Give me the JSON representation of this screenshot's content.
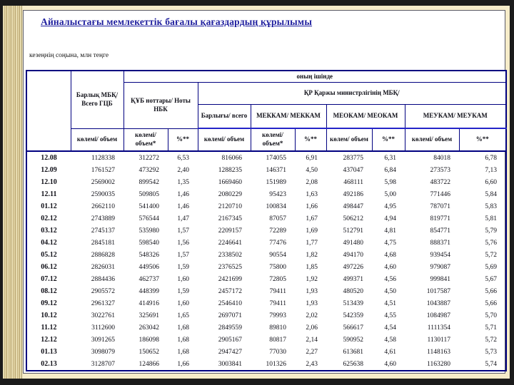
{
  "slide": {
    "title": "Айналыстағы мемлекеттік бағалы қағаздардың құрылымы",
    "subtitle": "кезеңнің соңына, млн теңге"
  },
  "colors": {
    "slide_background": "#f6ecc9",
    "table_border": "#000080",
    "header_divider_blue": "#2424c8",
    "title_text": "#1d1d9e",
    "frame_background": "#1b1b1b"
  },
  "table": {
    "header": {
      "total_gs": "Барлық МБҚ/ Всего ГЦБ",
      "of_which": "оның ішінде",
      "nbk_notes": "ҚҰБ ноттары/ Ноты НБК",
      "minfin": "ҚР Қаржы министрлігінің МБҚ/",
      "total": "Барлығы/ всего",
      "mekkam": "МЕККАМ/ МЕККАМ",
      "meokam": "МЕОКАМ/ МЕОКАМ",
      "meukam": "МЕУКАМ/ МЕУКАМ",
      "volume": "көлемі/ объем",
      "volume_star": "көлемі/ объем*",
      "volume_short": "көлем/ объем",
      "pct": "%**"
    },
    "rows": [
      [
        "12.08",
        "1128338",
        "312272",
        "6,53",
        "816066",
        "174055",
        "6,91",
        "283775",
        "6,31",
        "84018",
        "6,78"
      ],
      [
        "12.09",
        "1761527",
        "473292",
        "2,40",
        "1288235",
        "146371",
        "4,50",
        "437047",
        "6,84",
        "273573",
        "7,13"
      ],
      [
        "12.10",
        "2569002",
        "899542",
        "1,35",
        "1669460",
        "151989",
        "2,08",
        "468111",
        "5,98",
        "483722",
        "6,60"
      ],
      [
        "12.11",
        "2590035",
        "509805",
        "1,46",
        "2080229",
        "95423",
        "1,63",
        "492186",
        "5,00",
        "771446",
        "5,84"
      ],
      [
        "01.12",
        "2662110",
        "541400",
        "1,46",
        "2120710",
        "100834",
        "1,66",
        "498447",
        "4,95",
        "787071",
        "5,83"
      ],
      [
        "02.12",
        "2743889",
        "576544",
        "1,47",
        "2167345",
        "87057",
        "1,67",
        "506212",
        "4,94",
        "819771",
        "5,81"
      ],
      [
        "03.12",
        "2745137",
        "535980",
        "1,57",
        "2209157",
        "72289",
        "1,69",
        "512791",
        "4,81",
        "854771",
        "5,79"
      ],
      [
        "04.12",
        "2845181",
        "598540",
        "1,56",
        "2246641",
        "77476",
        "1,77",
        "491480",
        "4,75",
        "888371",
        "5,76"
      ],
      [
        "05.12",
        "2886828",
        "548326",
        "1,57",
        "2338502",
        "90554",
        "1,82",
        "494170",
        "4,68",
        "939454",
        "5,72"
      ],
      [
        "06.12",
        "2826031",
        "449506",
        "1,59",
        "2376525",
        "75800",
        "1,85",
        "497226",
        "4,60",
        "979087",
        "5,69"
      ],
      [
        "07.12",
        "2884436",
        "462737",
        "1,60",
        "2421699",
        "72805",
        "1,92",
        "499371",
        "4,56",
        "999841",
        "5,67"
      ],
      [
        "08.12",
        "2905572",
        "448399",
        "1,59",
        "2457172",
        "79411",
        "1,93",
        "480520",
        "4,50",
        "1017587",
        "5,66"
      ],
      [
        "09.12",
        "2961327",
        "414916",
        "1,60",
        "2546410",
        "79411",
        "1,93",
        "513439",
        "4,51",
        "1043887",
        "5,66"
      ],
      [
        "10.12",
        "3022761",
        "325691",
        "1,65",
        "2697071",
        "79993",
        "2,02",
        "542359",
        "4,55",
        "1084987",
        "5,70"
      ],
      [
        "11.12",
        "3112600",
        "263042",
        "1,68",
        "2849559",
        "89810",
        "2,06",
        "566617",
        "4,54",
        "1111354",
        "5,71"
      ],
      [
        "12.12",
        "3091265",
        "186098",
        "1,68",
        "2905167",
        "80817",
        "2,14",
        "590952",
        "4,58",
        "1130117",
        "5,72"
      ],
      [
        "01.13",
        "3098079",
        "150652",
        "1,68",
        "2947427",
        "77030",
        "2,27",
        "613681",
        "4,61",
        "1148163",
        "5,73"
      ],
      [
        "02.13",
        "3128707",
        "124866",
        "1,66",
        "3003841",
        "101326",
        "2,43",
        "625638",
        "4,60",
        "1163280",
        "5,74"
      ]
    ]
  }
}
